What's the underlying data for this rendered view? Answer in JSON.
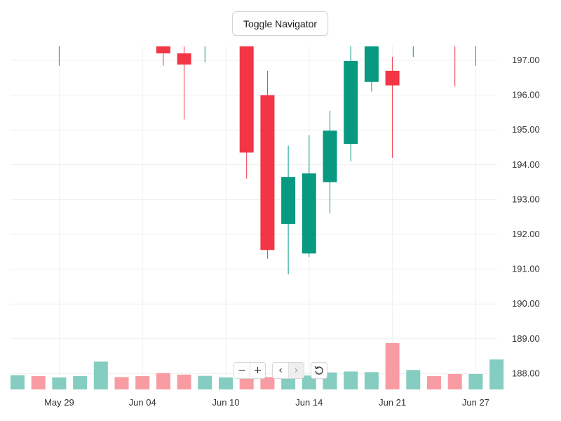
{
  "toolbar": {
    "toggle_navigator_label": "Toggle Navigator",
    "zoom_out_symbol": "−",
    "zoom_in_symbol": "+",
    "pan_left_symbol": "‹",
    "pan_right_symbol": "›",
    "reset_icon": "reset-icon"
  },
  "colors": {
    "up": "#089981",
    "down": "#f23645",
    "up_volume": "#84cdc0",
    "down_volume": "#f89ba2",
    "grid": "#efefef",
    "axis_text": "#333333"
  },
  "chart_data": {
    "type": "candlestick",
    "price_axis": {
      "side": "right",
      "ticks": [
        "188.00",
        "189.00",
        "190.00",
        "191.00",
        "192.00",
        "193.00",
        "194.00",
        "195.00",
        "196.00",
        "197.00"
      ],
      "range": [
        187.6,
        197.4
      ]
    },
    "time_axis": {
      "ticks": [
        "May 29",
        "Jun 04",
        "Jun 10",
        "Jun 14",
        "Jun 21",
        "Jun 27"
      ],
      "tick_slots": [
        2,
        6,
        10,
        14,
        18,
        22
      ]
    },
    "grid": true,
    "candles": [
      {
        "open": null,
        "high": null,
        "low": null,
        "close": null,
        "volume": 0.46,
        "dir": "up"
      },
      {
        "open": null,
        "high": null,
        "low": null,
        "close": null,
        "volume": 0.43,
        "dir": "down"
      },
      {
        "open": 197.4,
        "high": 197.5,
        "low": 196.85,
        "close": 197.4,
        "volume": 0.39,
        "dir": "up"
      },
      {
        "open": null,
        "high": null,
        "low": null,
        "close": null,
        "volume": 0.43,
        "dir": "up"
      },
      {
        "open": null,
        "high": null,
        "low": null,
        "close": null,
        "volume": 0.9,
        "dir": "up"
      },
      {
        "open": null,
        "high": null,
        "low": null,
        "close": null,
        "volume": 0.4,
        "dir": "down"
      },
      {
        "open": null,
        "high": null,
        "low": null,
        "close": null,
        "volume": 0.43,
        "dir": "down"
      },
      {
        "open": 197.4,
        "high": 197.5,
        "low": 196.85,
        "close": 197.2,
        "volume": 0.53,
        "dir": "down"
      },
      {
        "open": 197.2,
        "high": 197.4,
        "low": 195.3,
        "close": 196.88,
        "volume": 0.48,
        "dir": "down"
      },
      {
        "open": 197.4,
        "high": 197.5,
        "low": 196.95,
        "close": 197.4,
        "volume": 0.44,
        "dir": "up"
      },
      {
        "open": null,
        "high": null,
        "low": null,
        "close": null,
        "volume": 0.39,
        "dir": "up"
      },
      {
        "open": 197.4,
        "high": 197.5,
        "low": 193.6,
        "close": 194.35,
        "volume": 0.38,
        "dir": "down"
      },
      {
        "open": 196.0,
        "high": 196.7,
        "low": 191.3,
        "close": 191.55,
        "volume": 0.4,
        "dir": "down"
      },
      {
        "open": 192.3,
        "high": 194.55,
        "low": 190.85,
        "close": 193.65,
        "volume": 0.38,
        "dir": "up"
      },
      {
        "open": 191.45,
        "high": 194.85,
        "low": 191.35,
        "close": 193.75,
        "volume": 0.45,
        "dir": "up"
      },
      {
        "open": 193.5,
        "high": 195.55,
        "low": 192.6,
        "close": 194.98,
        "volume": 0.55,
        "dir": "up"
      },
      {
        "open": 194.6,
        "high": 197.5,
        "low": 194.1,
        "close": 196.98,
        "volume": 0.58,
        "dir": "up"
      },
      {
        "open": 196.38,
        "high": 197.5,
        "low": 196.1,
        "close": 197.4,
        "volume": 0.56,
        "dir": "up"
      },
      {
        "open": 196.7,
        "high": 197.1,
        "low": 194.2,
        "close": 196.28,
        "volume": 1.5,
        "dir": "down"
      },
      {
        "open": 197.4,
        "high": 197.5,
        "low": 197.1,
        "close": 197.4,
        "volume": 0.63,
        "dir": "up"
      },
      {
        "open": null,
        "high": null,
        "low": null,
        "close": null,
        "volume": 0.43,
        "dir": "down"
      },
      {
        "open": 197.4,
        "high": 197.5,
        "low": 196.25,
        "close": 197.4,
        "volume": 0.5,
        "dir": "down"
      },
      {
        "open": 197.4,
        "high": 197.5,
        "low": 196.85,
        "close": 197.4,
        "volume": 0.5,
        "dir": "up"
      },
      {
        "open": null,
        "high": null,
        "low": null,
        "close": null,
        "volume": 0.97,
        "dir": "up"
      }
    ]
  }
}
